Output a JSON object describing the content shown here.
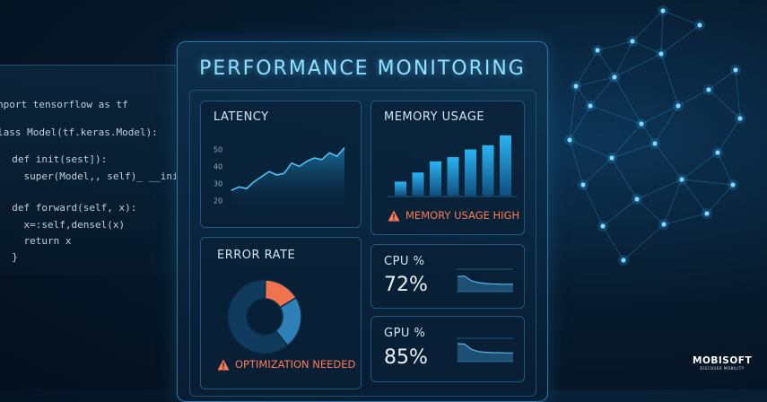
{
  "code_lines": [
    "nport tensorflow as tf",
    "lass Model(tf.keras.Model):",
    "  def init(sest]):",
    "    super(Model,, self)_ __init__",
    "  def forward(self, x):",
    "    x=:self,densel(x)",
    "    return x",
    "  }"
  ],
  "title": "PERFORMANCE MONITORING",
  "latency": {
    "label": "LATENCY",
    "ticks": [
      "50",
      "40",
      "30",
      "20"
    ],
    "y_ticks": [
      50,
      40,
      30,
      20
    ],
    "values": [
      26,
      28,
      27,
      31,
      34,
      37,
      35,
      36,
      42,
      40,
      43,
      45,
      44,
      48,
      46,
      51
    ]
  },
  "memory": {
    "label": "MEMORY USAGE",
    "bars": [
      0.2,
      0.33,
      0.49,
      0.55,
      0.66,
      0.72,
      0.86
    ],
    "warning": "MEMORY USAGE HIGH"
  },
  "error_rate": {
    "label": "ERROR RATE",
    "slices": [
      0.16,
      0.23,
      0.61
    ],
    "slice_colors": [
      "#f0734f",
      "#2e80b6",
      "#103b5c"
    ],
    "warning": "OPTIMIZATION NEEDED"
  },
  "cpu": {
    "label": "CPU %",
    "value": "72%",
    "spark": [
      0.7,
      0.72,
      0.5,
      0.42,
      0.38,
      0.36,
      0.35,
      0.34,
      0.34
    ]
  },
  "gpu": {
    "label": "GPU %",
    "value": "85%",
    "spark": [
      0.8,
      0.78,
      0.55,
      0.45,
      0.42,
      0.4,
      0.4,
      0.39,
      0.39
    ]
  },
  "logo": {
    "name": "MOBISOFT",
    "tagline": "DISCOVER MOBILITY"
  },
  "colors": {
    "accent": "#8fe0ff",
    "warning": "#ff7a57",
    "bar": "#1f9ad8",
    "line": "#4fc3f7"
  }
}
